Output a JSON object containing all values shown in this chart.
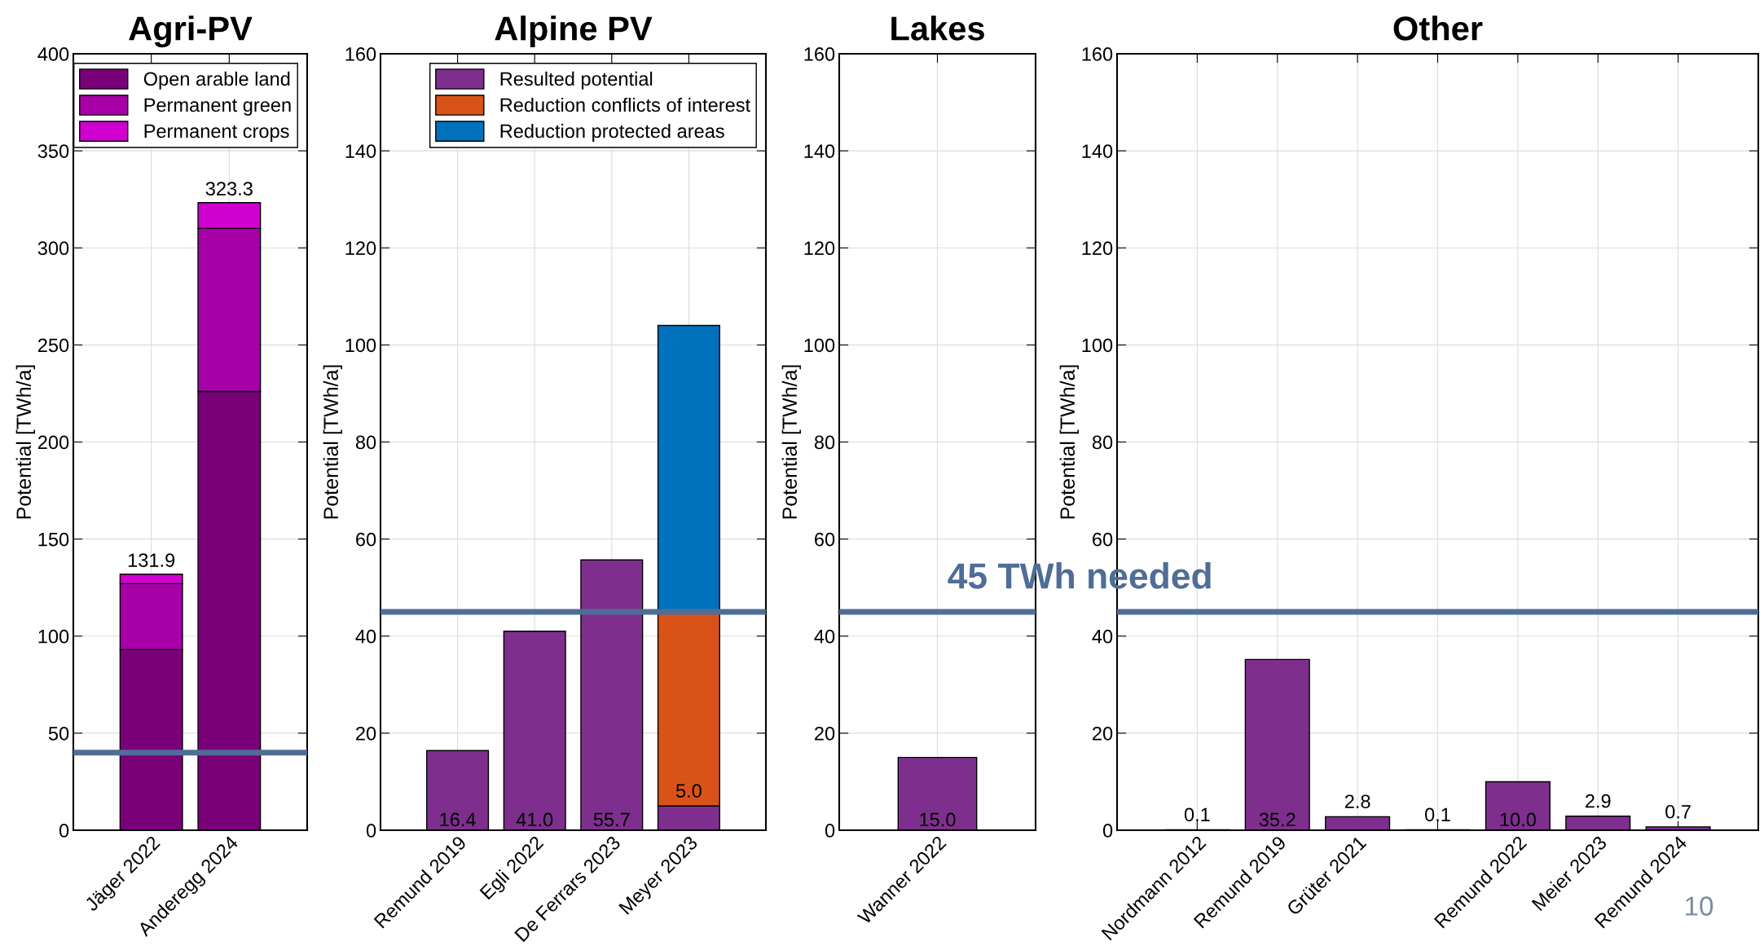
{
  "chart_data": [
    {
      "type": "bar",
      "title": "Agri-PV",
      "ylabel": "Potential [TWh/a]",
      "categories": [
        "Jäger 2022",
        "Anderegg 2024"
      ],
      "stacked": true,
      "series": [
        {
          "name": "Open arable land",
          "color": "#7a007a",
          "values": [
            93,
            226
          ]
        },
        {
          "name": "Permanent green",
          "color": "#a800a8",
          "values": [
            34,
            84
          ]
        },
        {
          "name": "Permanent crops",
          "color": "#d000d0",
          "values": [
            4.9,
            13.3
          ]
        }
      ],
      "totals": [
        "131.9",
        "323.3"
      ],
      "ylim": [
        0,
        400
      ],
      "yticks": [
        0,
        50,
        100,
        150,
        200,
        250,
        300,
        350,
        400
      ],
      "grid": true,
      "legend": "top right",
      "ref_lines": [
        {
          "axis": "y",
          "value": 40,
          "color": "#4f6d96"
        }
      ]
    },
    {
      "type": "bar",
      "title": "Alpine PV",
      "ylabel": "Potential [TWh/a]",
      "categories": [
        "Remund 2019",
        "Egli 2022",
        "De Ferrars 2023",
        "Meyer 2023"
      ],
      "stacked": true,
      "series": [
        {
          "name": "Resulted potential",
          "color": "#7e2f8e",
          "values": [
            16.4,
            41.0,
            55.7,
            5.0
          ],
          "value_labels": [
            "16.4",
            "41.0",
            "55.7",
            "5.0"
          ]
        },
        {
          "name": "Reduction conflicts of interest",
          "color": "#d95319",
          "values": [
            null,
            null,
            null,
            40
          ]
        },
        {
          "name": "Reduction protected areas",
          "color": "#0072bd",
          "values": [
            null,
            null,
            null,
            59
          ]
        }
      ],
      "ylim": [
        0,
        160
      ],
      "yticks": [
        0,
        20,
        40,
        60,
        80,
        100,
        120,
        140,
        160
      ],
      "grid": true,
      "legend": "top right",
      "ref_lines": [
        {
          "axis": "y",
          "value": 45,
          "color": "#4f6d96"
        }
      ]
    },
    {
      "type": "bar",
      "title": "Lakes",
      "ylabel": "Potential [TWh/a]",
      "categories": [
        "Wanner 2022"
      ],
      "color": "#7e2f8e",
      "values": [
        15.0
      ],
      "value_labels": [
        "15.0"
      ],
      "ylim": [
        0,
        160
      ],
      "yticks": [
        0,
        20,
        40,
        60,
        80,
        100,
        120,
        140,
        160
      ],
      "grid": true,
      "ref_lines": [
        {
          "axis": "y",
          "value": 45,
          "color": "#4f6d96"
        }
      ]
    },
    {
      "type": "bar",
      "title": "Other",
      "ylabel": "Potential [TWh/a]",
      "categories": [
        "Nordmann 2012",
        "Remund 2019",
        "Grüter 2021",
        null,
        "Remund 2022",
        "Meier 2023",
        "Remund 2024"
      ],
      "color": "#7e2f8e",
      "values": [
        0.1,
        35.2,
        2.8,
        0.1,
        10.0,
        2.9,
        0.7
      ],
      "value_labels": [
        "0.1",
        "35.2",
        "2.8",
        "0.1",
        "10.0",
        "2.9",
        "0.7"
      ],
      "ylim": [
        0,
        160
      ],
      "yticks": [
        0,
        20,
        40,
        60,
        80,
        100,
        120,
        140,
        160
      ],
      "grid": true,
      "ref_lines": [
        {
          "axis": "y",
          "value": 45,
          "label": "45 TWh needed",
          "color": "#4f6d96"
        }
      ],
      "annotations": [
        "10"
      ]
    }
  ]
}
